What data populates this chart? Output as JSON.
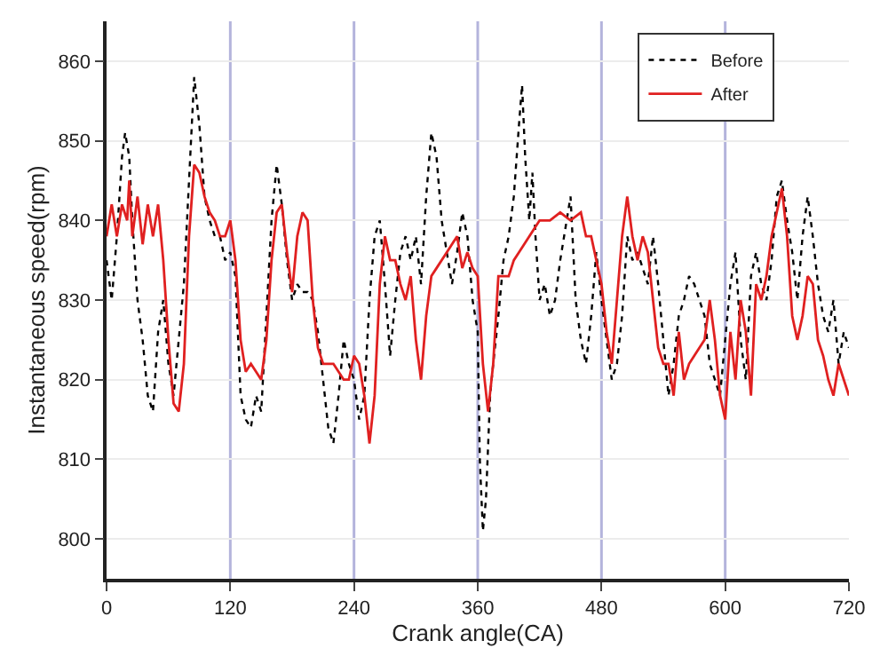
{
  "chart_data": {
    "type": "line",
    "xlabel": "Crank angle(CA)",
    "ylabel": "Instantaneous speed(rpm)",
    "xlim": [
      0,
      720
    ],
    "xticks": [
      0,
      120,
      240,
      360,
      480,
      600,
      720
    ],
    "ylim": [
      795,
      865
    ],
    "yticks": [
      800,
      810,
      820,
      830,
      840,
      850,
      860
    ],
    "grid": "y",
    "legend": "top right",
    "marker": "none",
    "ref_lines": [
      {
        "axis": "x",
        "value": 120,
        "color": "#b4b4dc"
      },
      {
        "axis": "x",
        "value": 240,
        "color": "#b4b4dc"
      },
      {
        "axis": "x",
        "value": 360,
        "color": "#b4b4dc"
      },
      {
        "axis": "x",
        "value": 480,
        "color": "#b4b4dc"
      },
      {
        "axis": "x",
        "value": 600,
        "color": "#b4b4dc"
      }
    ],
    "series": [
      {
        "name": "Before",
        "color": "#000000",
        "line_style": "dotted",
        "x": [
          0,
          5,
          10,
          15,
          18,
          22,
          25,
          30,
          35,
          40,
          45,
          50,
          55,
          60,
          65,
          70,
          75,
          80,
          85,
          90,
          95,
          100,
          105,
          110,
          115,
          120,
          125,
          130,
          135,
          140,
          145,
          150,
          155,
          160,
          165,
          170,
          175,
          180,
          185,
          190,
          195,
          200,
          205,
          210,
          215,
          220,
          225,
          230,
          235,
          240,
          245,
          250,
          255,
          260,
          265,
          270,
          275,
          280,
          285,
          290,
          295,
          300,
          305,
          310,
          315,
          320,
          325,
          330,
          335,
          340,
          345,
          350,
          355,
          360,
          362,
          365,
          368,
          372,
          375,
          380,
          385,
          390,
          395,
          400,
          403,
          406,
          410,
          413,
          416,
          420,
          425,
          430,
          435,
          440,
          445,
          450,
          455,
          460,
          465,
          470,
          475,
          480,
          485,
          490,
          495,
          500,
          505,
          510,
          515,
          520,
          525,
          530,
          535,
          540,
          545,
          550,
          555,
          560,
          565,
          570,
          575,
          580,
          585,
          590,
          595,
          600,
          605,
          610,
          615,
          620,
          625,
          630,
          635,
          640,
          645,
          650,
          655,
          660,
          665,
          670,
          675,
          680,
          685,
          690,
          695,
          700,
          705,
          710,
          715,
          720
        ],
        "values": [
          835,
          830,
          838,
          848,
          851,
          848,
          840,
          830,
          825,
          818,
          816,
          826,
          830,
          822,
          818,
          825,
          832,
          845,
          858,
          852,
          843,
          840,
          838,
          838,
          835,
          836,
          833,
          818,
          815,
          814,
          818,
          816,
          828,
          840,
          847,
          842,
          835,
          830,
          832,
          831,
          831,
          830,
          826,
          820,
          814,
          812,
          818,
          825,
          822,
          820,
          815,
          818,
          830,
          838,
          840,
          832,
          823,
          830,
          836,
          838,
          835,
          838,
          832,
          843,
          851,
          848,
          840,
          836,
          832,
          836,
          841,
          838,
          830,
          826,
          810,
          801,
          805,
          818,
          822,
          828,
          835,
          838,
          843,
          852,
          857,
          848,
          840,
          846,
          838,
          830,
          832,
          828,
          830,
          835,
          839,
          843,
          830,
          825,
          822,
          828,
          836,
          830,
          825,
          820,
          822,
          828,
          838,
          835,
          836,
          834,
          832,
          838,
          832,
          825,
          818,
          822,
          828,
          830,
          833,
          832,
          830,
          828,
          822,
          820,
          818,
          825,
          832,
          836,
          825,
          820,
          833,
          836,
          832,
          830,
          835,
          843,
          845,
          840,
          836,
          830,
          838,
          843,
          838,
          832,
          828,
          826,
          830,
          822,
          826,
          824
        ]
      },
      {
        "name": "After",
        "color": "#e02020",
        "line_style": "solid",
        "x": [
          0,
          5,
          10,
          15,
          20,
          22,
          25,
          30,
          35,
          40,
          45,
          50,
          55,
          60,
          65,
          70,
          75,
          80,
          85,
          90,
          95,
          100,
          105,
          110,
          115,
          120,
          125,
          130,
          135,
          140,
          145,
          150,
          155,
          160,
          165,
          170,
          175,
          180,
          185,
          190,
          195,
          200,
          205,
          210,
          220,
          225,
          230,
          235,
          240,
          245,
          250,
          255,
          260,
          265,
          270,
          275,
          280,
          285,
          290,
          295,
          300,
          305,
          310,
          315,
          320,
          330,
          340,
          345,
          350,
          355,
          360,
          365,
          370,
          375,
          380,
          385,
          390,
          395,
          400,
          410,
          420,
          430,
          440,
          450,
          460,
          465,
          470,
          475,
          480,
          485,
          490,
          495,
          500,
          505,
          510,
          515,
          520,
          525,
          530,
          535,
          540,
          545,
          550,
          555,
          560,
          565,
          570,
          575,
          580,
          585,
          590,
          595,
          600,
          605,
          610,
          615,
          620,
          625,
          630,
          635,
          640,
          645,
          650,
          655,
          660,
          665,
          670,
          675,
          680,
          685,
          690,
          695,
          700,
          705,
          710,
          715,
          720
        ],
        "values": [
          838,
          842,
          838,
          842,
          840,
          845,
          838,
          843,
          837,
          842,
          838,
          842,
          835,
          825,
          817,
          816,
          822,
          838,
          847,
          846,
          843,
          841,
          840,
          838,
          838,
          840,
          835,
          825,
          821,
          822,
          821,
          820,
          825,
          835,
          841,
          842,
          836,
          831,
          838,
          841,
          840,
          830,
          824,
          822,
          822,
          821,
          820,
          820,
          823,
          822,
          818,
          812,
          818,
          832,
          838,
          835,
          835,
          832,
          830,
          833,
          825,
          820,
          828,
          833,
          834,
          836,
          838,
          834,
          836,
          834,
          833,
          822,
          816,
          822,
          833,
          833,
          833,
          835,
          836,
          838,
          840,
          840,
          841,
          840,
          841,
          838,
          838,
          835,
          832,
          826,
          822,
          830,
          838,
          843,
          838,
          835,
          838,
          836,
          830,
          824,
          822,
          822,
          818,
          826,
          820,
          822,
          823,
          824,
          825,
          830,
          825,
          818,
          815,
          826,
          820,
          830,
          826,
          818,
          832,
          830,
          833,
          838,
          841,
          844,
          838,
          828,
          825,
          828,
          833,
          832,
          825,
          823,
          820,
          818,
          822,
          820,
          818
        ]
      }
    ]
  }
}
